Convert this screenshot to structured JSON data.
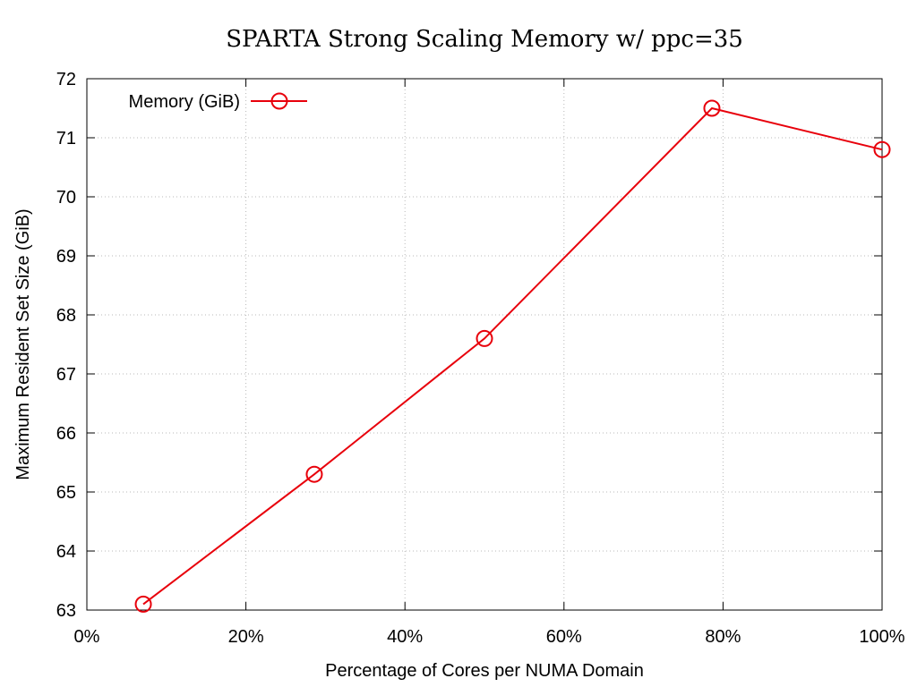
{
  "chart_data": {
    "type": "line",
    "title": "SPARTA Strong Scaling Memory w/ ppc=35",
    "xlabel": "Percentage of Cores per NUMA Domain",
    "ylabel": "Maximum Resident Set Size (GiB)",
    "xlim": [
      0,
      100
    ],
    "ylim": [
      63,
      72
    ],
    "x_ticks": [
      0,
      20,
      40,
      60,
      80,
      100
    ],
    "x_tick_labels": [
      "0%",
      "20%",
      "40%",
      "60%",
      "80%",
      "100%"
    ],
    "y_ticks": [
      63,
      64,
      65,
      66,
      67,
      68,
      69,
      70,
      71,
      72
    ],
    "y_tick_labels": [
      "63",
      "64",
      "65",
      "66",
      "67",
      "68",
      "69",
      "70",
      "71",
      "72"
    ],
    "grid": true,
    "legend_position": "top-left",
    "series": [
      {
        "name": "Memory (GiB)",
        "color": "#e8000b",
        "marker": "open-circle",
        "x": [
          7.1,
          28.6,
          50.0,
          78.6,
          100.0
        ],
        "y": [
          63.1,
          65.3,
          67.6,
          71.5,
          70.8
        ]
      }
    ]
  }
}
